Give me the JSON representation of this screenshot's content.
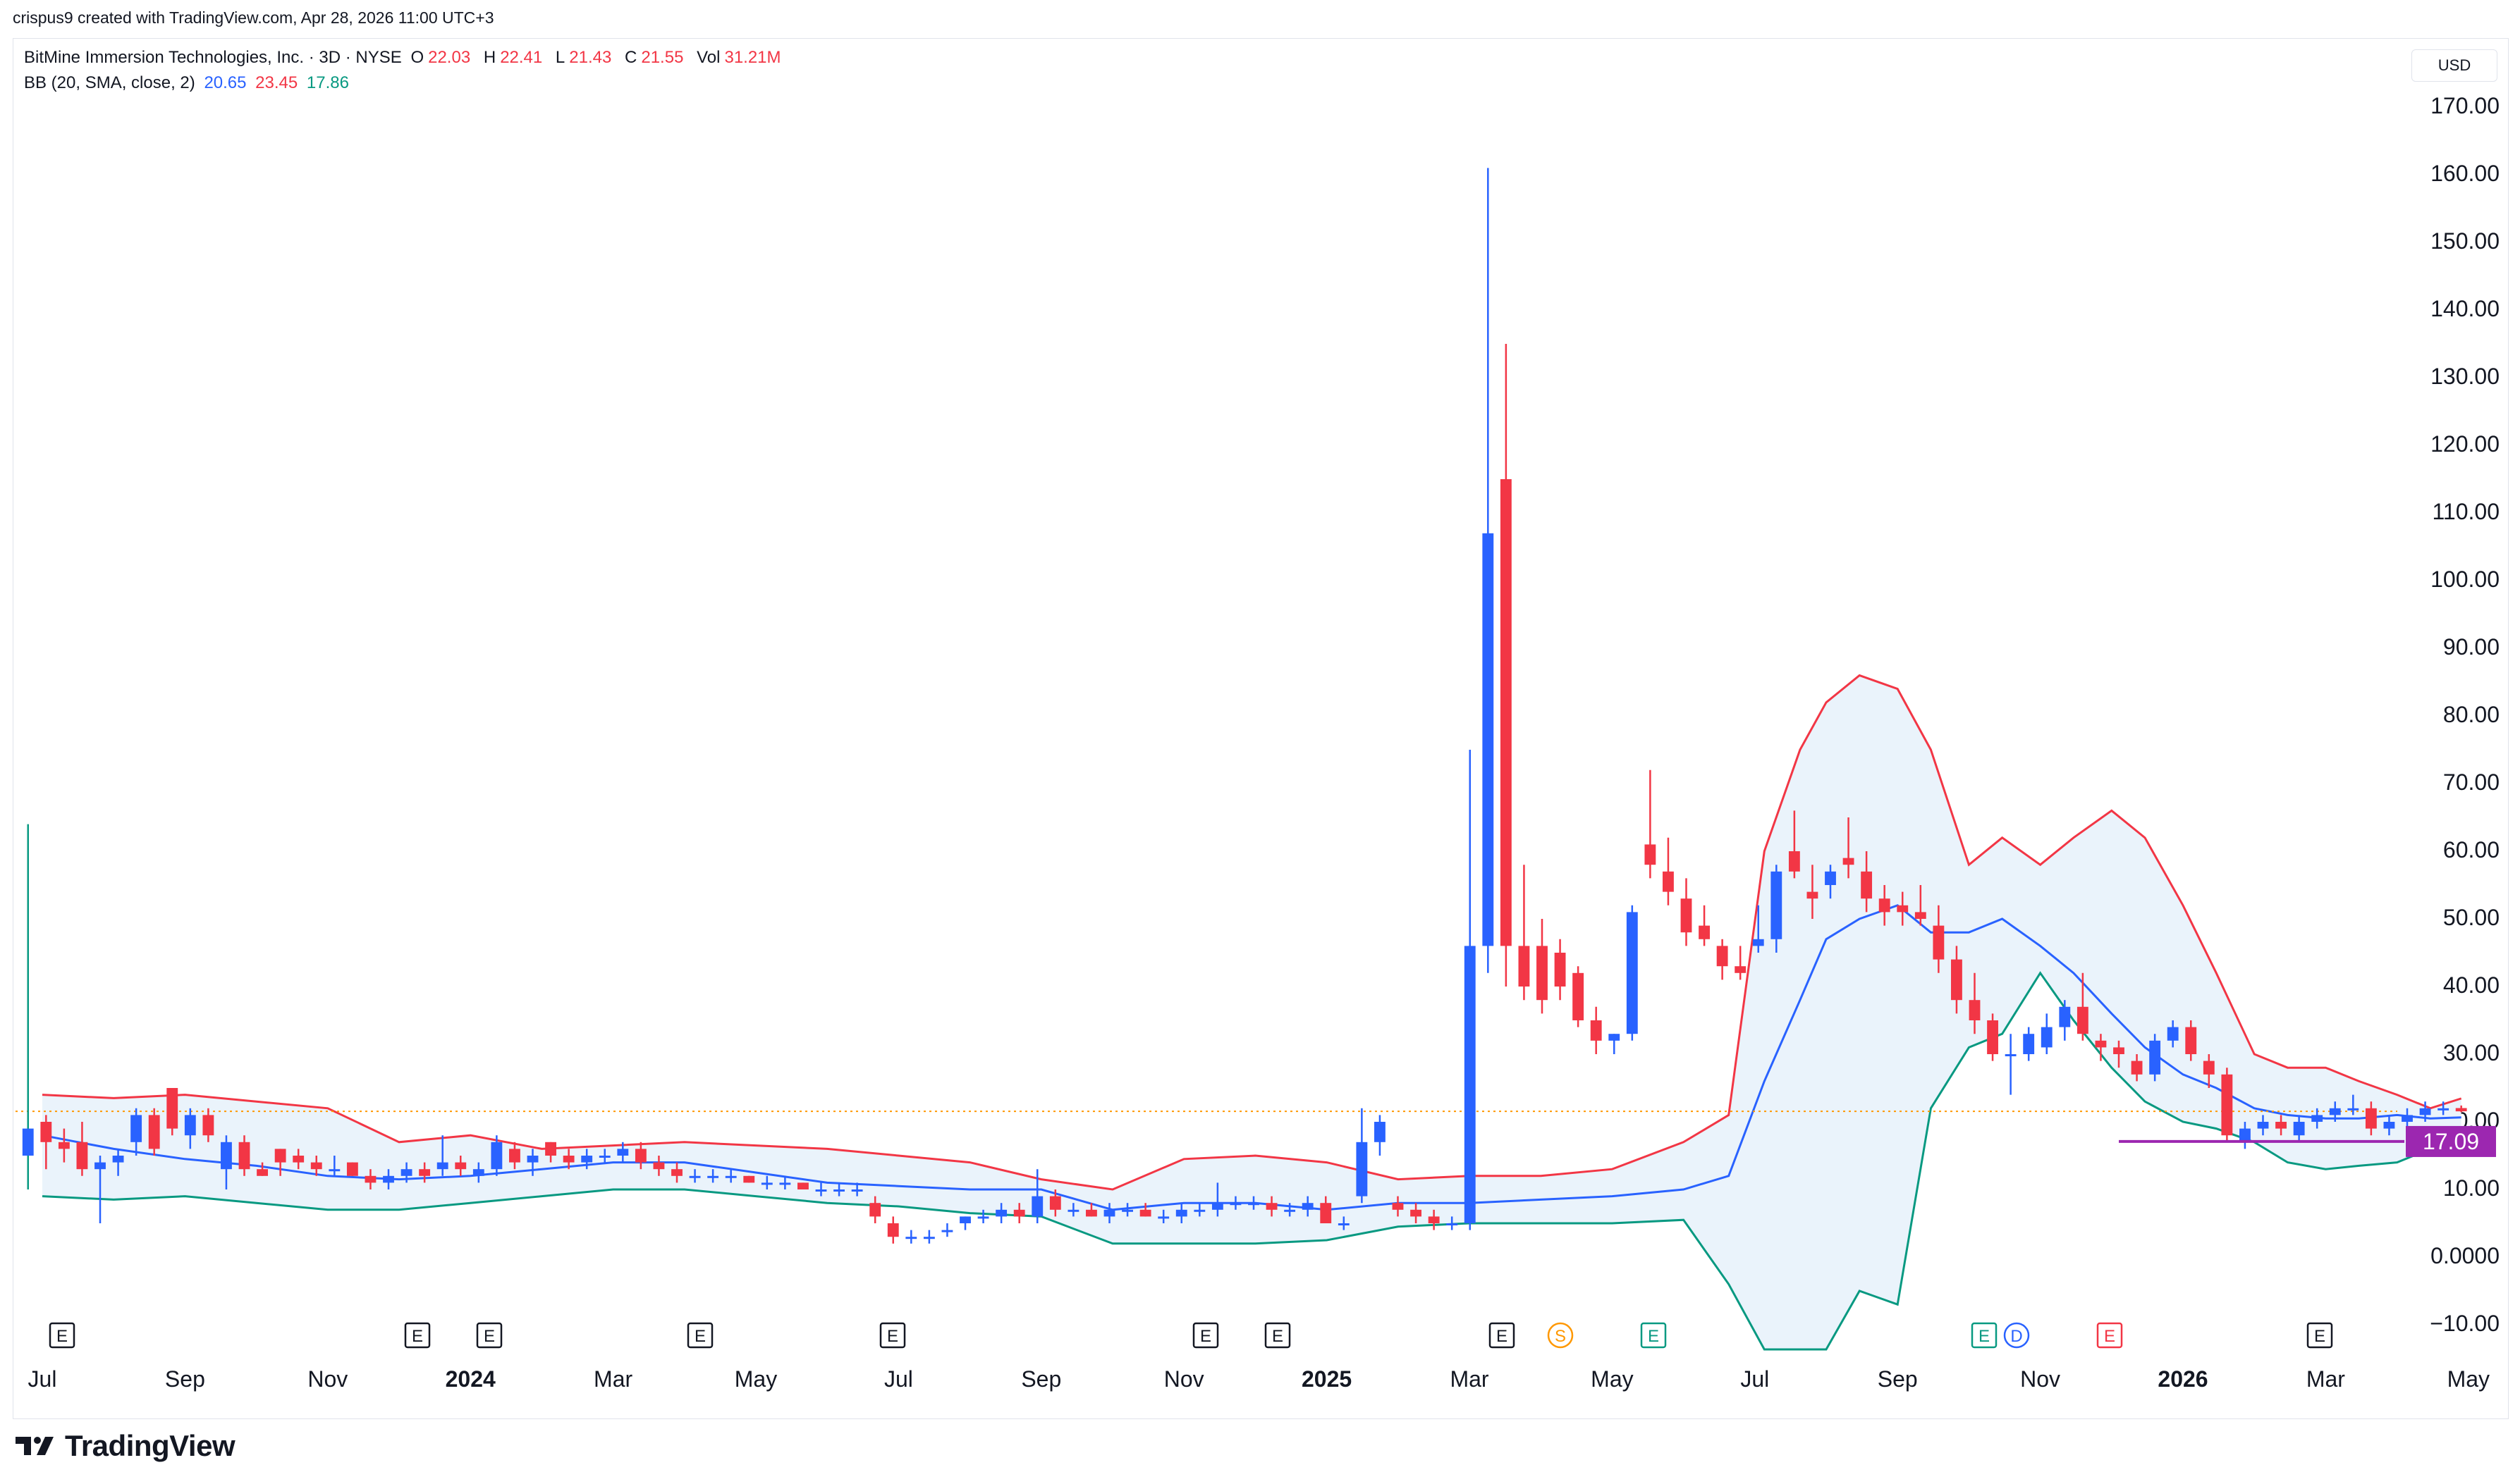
{
  "header": {
    "byline": "crispus9 created with TradingView.com, Apr 28, 2026 11:00 UTC+3"
  },
  "legend": {
    "symbol": "BitMine Immersion Technologies, Inc. · 3D · NYSE",
    "o_label": "O",
    "o": "22.03",
    "h_label": "H",
    "h": "22.41",
    "l_label": "L",
    "l": "21.43",
    "c_label": "C",
    "c": "21.55",
    "vol_label": "Vol",
    "vol": "31.21M",
    "bb_label": "BB (20, SMA, close, 2)",
    "bb_basis": "20.65",
    "bb_upper": "23.45",
    "bb_lower": "17.86"
  },
  "currency": "USD",
  "brand": {
    "name": "TradingView"
  },
  "colors": {
    "up": "#2962ff",
    "down": "#f23645",
    "upper_band": "#f23645",
    "lower_band": "#089981",
    "basis": "#2962ff",
    "band_fill": "#eaf3fb",
    "support": "#9c27b0",
    "last_price": "#ff9800"
  },
  "chart_data": {
    "type": "candlestick",
    "y_ticks": [
      "170.00",
      "160.00",
      "150.00",
      "140.00",
      "130.00",
      "120.00",
      "110.00",
      "100.00",
      "90.00",
      "80.00",
      "70.00",
      "60.00",
      "50.00",
      "40.00",
      "30.00",
      "20.00",
      "10.00",
      "0.0000",
      "−10.00"
    ],
    "ylim": [
      -10,
      170
    ],
    "x_ticks": [
      {
        "label": "Jul",
        "bold": false
      },
      {
        "label": "Sep",
        "bold": false
      },
      {
        "label": "Nov",
        "bold": false
      },
      {
        "label": "2024",
        "bold": true
      },
      {
        "label": "Mar",
        "bold": false
      },
      {
        "label": "May",
        "bold": false
      },
      {
        "label": "Jul",
        "bold": false
      },
      {
        "label": "Sep",
        "bold": false
      },
      {
        "label": "Nov",
        "bold": false
      },
      {
        "label": "2025",
        "bold": true
      },
      {
        "label": "Mar",
        "bold": false
      },
      {
        "label": "May",
        "bold": false
      },
      {
        "label": "Jul",
        "bold": false
      },
      {
        "label": "Sep",
        "bold": false
      },
      {
        "label": "Nov",
        "bold": false
      },
      {
        "label": "2026",
        "bold": true
      },
      {
        "label": "Mar",
        "bold": false
      },
      {
        "label": "May",
        "bold": false
      }
    ],
    "support_level": {
      "value": 17.09,
      "label": "17.09"
    },
    "last_price": 21.55,
    "events": [
      {
        "type": "E",
        "date": "2023-07"
      },
      {
        "type": "E",
        "date": "2023-12"
      },
      {
        "type": "E",
        "date": "2024-01"
      },
      {
        "type": "E",
        "date": "2024-04"
      },
      {
        "type": "E",
        "date": "2024-07"
      },
      {
        "type": "E",
        "date": "2024-11"
      },
      {
        "type": "E",
        "date": "2024-12"
      },
      {
        "type": "E",
        "date": "2025-04"
      },
      {
        "type": "S",
        "date": "2025-05"
      },
      {
        "type": "E",
        "date": "2025-07"
      },
      {
        "type": "E",
        "date": "2025-11"
      },
      {
        "type": "D",
        "date": "2025-11"
      },
      {
        "type": "E",
        "date": "2026-01"
      },
      {
        "type": "E",
        "date": "2026-04"
      }
    ],
    "bands": {
      "dates": [
        "2023-07",
        "2023-08",
        "2023-09",
        "2023-10",
        "2023-11",
        "2023-12",
        "2024-01",
        "2024-02",
        "2024-03",
        "2024-04",
        "2024-05",
        "2024-06",
        "2024-07",
        "2024-08",
        "2024-09",
        "2024-10",
        "2024-11",
        "2024-12",
        "2025-01",
        "2025-02",
        "2025-03",
        "2025-04",
        "2025-05",
        "2025-06",
        "2025-06-20",
        "2025-07-05",
        "2025-07-20",
        "2025-08",
        "2025-08-15",
        "2025-09",
        "2025-09-15",
        "2025-10",
        "2025-10-15",
        "2025-11",
        "2025-11-15",
        "2025-12",
        "2025-12-15",
        "2026-01",
        "2026-01-15",
        "2026-02",
        "2026-02-15",
        "2026-03",
        "2026-03-15",
        "2026-04",
        "2026-04-15",
        "2026-04-28"
      ],
      "upper": [
        24,
        23.5,
        24,
        23,
        22,
        17,
        18,
        16,
        16.5,
        17,
        16.5,
        16,
        15,
        14,
        11.5,
        10,
        14.5,
        15,
        14,
        11.5,
        12,
        12,
        13,
        17,
        21,
        60,
        75,
        82,
        86,
        84,
        75,
        58,
        62,
        58,
        62,
        66,
        62,
        52,
        42,
        30,
        28,
        28,
        26,
        24,
        22,
        23.45
      ],
      "basis": [
        18,
        16,
        14.5,
        13.5,
        12,
        11.5,
        12,
        13,
        14,
        14,
        12.5,
        11,
        10.5,
        10,
        10,
        7,
        8,
        8,
        7,
        8,
        8,
        8.5,
        9,
        10,
        12,
        26,
        38,
        47,
        50,
        52,
        48,
        48,
        50,
        46,
        42,
        36,
        31,
        27,
        25,
        22,
        21,
        20.5,
        20.5,
        21,
        20.5,
        20.65
      ],
      "lower": [
        9,
        8.5,
        9,
        8,
        7,
        7,
        8,
        9,
        10,
        10,
        9,
        8,
        7.5,
        6.5,
        6,
        2,
        2,
        2,
        2.5,
        4.5,
        5,
        5,
        5,
        5.5,
        -4,
        -30,
        -40,
        -20,
        -5,
        -7,
        22,
        31,
        33,
        42,
        35,
        28,
        23,
        20,
        19,
        17,
        14,
        13,
        13.5,
        14,
        16,
        17.86
      ]
    },
    "candles": [
      {
        "o": 15,
        "h": 64,
        "l": 10,
        "c": 19,
        "v": "spike"
      },
      {
        "o": 20,
        "h": 21,
        "l": 13,
        "c": 17
      },
      {
        "o": 17,
        "h": 19,
        "l": 14,
        "c": 16
      },
      {
        "o": 17,
        "h": 20,
        "l": 12,
        "c": 13
      },
      {
        "o": 13,
        "h": 15,
        "l": 5,
        "c": 14
      },
      {
        "o": 14,
        "h": 16,
        "l": 12,
        "c": 15
      },
      {
        "o": 17,
        "h": 22,
        "l": 15,
        "c": 21
      },
      {
        "o": 21,
        "h": 22,
        "l": 15,
        "c": 16
      },
      {
        "o": 25,
        "h": 25,
        "l": 18,
        "c": 19
      },
      {
        "o": 18,
        "h": 22,
        "l": 16,
        "c": 21
      },
      {
        "o": 21,
        "h": 22,
        "l": 17,
        "c": 18
      },
      {
        "o": 13,
        "h": 18,
        "l": 10,
        "c": 17
      },
      {
        "o": 17,
        "h": 18,
        "l": 12,
        "c": 13
      },
      {
        "o": 13,
        "h": 14,
        "l": 12,
        "c": 12
      },
      {
        "o": 16,
        "h": 16,
        "l": 12,
        "c": 14
      },
      {
        "o": 15,
        "h": 16,
        "l": 13,
        "c": 14
      },
      {
        "o": 14,
        "h": 15,
        "l": 12,
        "c": 13
      },
      {
        "o": 13,
        "h": 15,
        "l": 12,
        "c": 13
      },
      {
        "o": 14,
        "h": 14,
        "l": 12,
        "c": 12
      },
      {
        "o": 12,
        "h": 13,
        "l": 10,
        "c": 11
      },
      {
        "o": 11,
        "h": 13,
        "l": 10,
        "c": 12
      },
      {
        "o": 12,
        "h": 14,
        "l": 11,
        "c": 13
      },
      {
        "o": 13,
        "h": 14,
        "l": 11,
        "c": 12
      },
      {
        "o": 13,
        "h": 18,
        "l": 12,
        "c": 14
      },
      {
        "o": 14,
        "h": 15,
        "l": 12,
        "c": 13
      },
      {
        "o": 12,
        "h": 14,
        "l": 11,
        "c": 13
      },
      {
        "o": 13,
        "h": 18,
        "l": 12,
        "c": 17
      },
      {
        "o": 16,
        "h": 17,
        "l": 13,
        "c": 14
      },
      {
        "o": 14,
        "h": 16,
        "l": 12,
        "c": 15
      },
      {
        "o": 17,
        "h": 17,
        "l": 14,
        "c": 15
      },
      {
        "o": 15,
        "h": 16,
        "l": 13,
        "c": 14
      },
      {
        "o": 14,
        "h": 16,
        "l": 13,
        "c": 15
      },
      {
        "o": 15,
        "h": 16,
        "l": 14,
        "c": 15
      },
      {
        "o": 15,
        "h": 17,
        "l": 14,
        "c": 16
      },
      {
        "o": 16,
        "h": 17,
        "l": 13,
        "c": 14
      },
      {
        "o": 14,
        "h": 15,
        "l": 12,
        "c": 13
      },
      {
        "o": 13,
        "h": 14,
        "l": 11,
        "c": 12
      },
      {
        "o": 12,
        "h": 13,
        "l": 11,
        "c": 12
      },
      {
        "o": 12,
        "h": 13,
        "l": 11,
        "c": 12
      },
      {
        "o": 12,
        "h": 13,
        "l": 11,
        "c": 12
      },
      {
        "o": 12,
        "h": 12,
        "l": 11,
        "c": 11
      },
      {
        "o": 11,
        "h": 12,
        "l": 10,
        "c": 11
      },
      {
        "o": 11,
        "h": 12,
        "l": 10,
        "c": 11
      },
      {
        "o": 11,
        "h": 11,
        "l": 10,
        "c": 10
      },
      {
        "o": 10,
        "h": 11,
        "l": 9,
        "c": 10
      },
      {
        "o": 10,
        "h": 11,
        "l": 9,
        "c": 10
      },
      {
        "o": 10,
        "h": 11,
        "l": 9,
        "c": 10
      },
      {
        "o": 8,
        "h": 9,
        "l": 5,
        "c": 6
      },
      {
        "o": 5,
        "h": 6,
        "l": 2,
        "c": 3
      },
      {
        "o": 3,
        "h": 4,
        "l": 2,
        "c": 3
      },
      {
        "o": 3,
        "h": 4,
        "l": 2,
        "c": 3
      },
      {
        "o": 4,
        "h": 5,
        "l": 3,
        "c": 4
      },
      {
        "o": 5,
        "h": 6,
        "l": 4,
        "c": 6
      },
      {
        "o": 6,
        "h": 7,
        "l": 5,
        "c": 6
      },
      {
        "o": 6,
        "h": 8,
        "l": 5,
        "c": 7
      },
      {
        "o": 7,
        "h": 8,
        "l": 5,
        "c": 6
      },
      {
        "o": 6,
        "h": 13,
        "l": 5,
        "c": 9
      },
      {
        "o": 9,
        "h": 10,
        "l": 6,
        "c": 7
      },
      {
        "o": 7,
        "h": 8,
        "l": 6,
        "c": 7
      },
      {
        "o": 7,
        "h": 8,
        "l": 6,
        "c": 6
      },
      {
        "o": 6,
        "h": 8,
        "l": 5,
        "c": 7
      },
      {
        "o": 7,
        "h": 8,
        "l": 6,
        "c": 7
      },
      {
        "o": 7,
        "h": 8,
        "l": 6,
        "c": 6
      },
      {
        "o": 6,
        "h": 7,
        "l": 5,
        "c": 6
      },
      {
        "o": 6,
        "h": 8,
        "l": 5,
        "c": 7
      },
      {
        "o": 7,
        "h": 8,
        "l": 6,
        "c": 7
      },
      {
        "o": 7,
        "h": 11,
        "l": 6,
        "c": 8
      },
      {
        "o": 8,
        "h": 9,
        "l": 7,
        "c": 8
      },
      {
        "o": 8,
        "h": 9,
        "l": 7,
        "c": 8
      },
      {
        "o": 8,
        "h": 9,
        "l": 6,
        "c": 7
      },
      {
        "o": 7,
        "h": 8,
        "l": 6,
        "c": 7
      },
      {
        "o": 7,
        "h": 9,
        "l": 6,
        "c": 8
      },
      {
        "o": 8,
        "h": 9,
        "l": 5,
        "c": 5
      },
      {
        "o": 5,
        "h": 6,
        "l": 4,
        "c": 5
      },
      {
        "o": 9,
        "h": 22,
        "l": 8,
        "c": 17
      },
      {
        "o": 17,
        "h": 21,
        "l": 15,
        "c": 20
      },
      {
        "o": 8,
        "h": 9,
        "l": 6,
        "c": 7
      },
      {
        "o": 7,
        "h": 8,
        "l": 5,
        "c": 6
      },
      {
        "o": 6,
        "h": 7,
        "l": 4,
        "c": 5
      },
      {
        "o": 5,
        "h": 6,
        "l": 4,
        "c": 5
      },
      {
        "o": 5,
        "h": 75,
        "l": 4,
        "c": 46
      },
      {
        "o": 46,
        "h": 161,
        "l": 42,
        "c": 107
      },
      {
        "o": 115,
        "h": 135,
        "l": 40,
        "c": 46
      },
      {
        "o": 46,
        "h": 58,
        "l": 38,
        "c": 40
      },
      {
        "o": 46,
        "h": 50,
        "l": 36,
        "c": 38
      },
      {
        "o": 45,
        "h": 47,
        "l": 38,
        "c": 40
      },
      {
        "o": 42,
        "h": 43,
        "l": 34,
        "c": 35
      },
      {
        "o": 35,
        "h": 37,
        "l": 30,
        "c": 32
      },
      {
        "o": 32,
        "h": 33,
        "l": 30,
        "c": 33
      },
      {
        "o": 33,
        "h": 52,
        "l": 32,
        "c": 51
      },
      {
        "o": 61,
        "h": 72,
        "l": 56,
        "c": 58
      },
      {
        "o": 57,
        "h": 62,
        "l": 52,
        "c": 54
      },
      {
        "o": 53,
        "h": 56,
        "l": 46,
        "c": 48
      },
      {
        "o": 49,
        "h": 52,
        "l": 46,
        "c": 47
      },
      {
        "o": 46,
        "h": 47,
        "l": 41,
        "c": 43
      },
      {
        "o": 43,
        "h": 46,
        "l": 41,
        "c": 42
      },
      {
        "o": 46,
        "h": 52,
        "l": 45,
        "c": 47
      },
      {
        "o": 47,
        "h": 58,
        "l": 45,
        "c": 57
      },
      {
        "o": 60,
        "h": 66,
        "l": 56,
        "c": 57
      },
      {
        "o": 54,
        "h": 58,
        "l": 50,
        "c": 53
      },
      {
        "o": 55,
        "h": 58,
        "l": 53,
        "c": 57
      },
      {
        "o": 59,
        "h": 65,
        "l": 56,
        "c": 58
      },
      {
        "o": 57,
        "h": 60,
        "l": 51,
        "c": 53
      },
      {
        "o": 53,
        "h": 55,
        "l": 49,
        "c": 51
      },
      {
        "o": 52,
        "h": 54,
        "l": 49,
        "c": 51
      },
      {
        "o": 51,
        "h": 55,
        "l": 49,
        "c": 50
      },
      {
        "o": 49,
        "h": 52,
        "l": 42,
        "c": 44
      },
      {
        "o": 44,
        "h": 46,
        "l": 36,
        "c": 38
      },
      {
        "o": 38,
        "h": 42,
        "l": 33,
        "c": 35
      },
      {
        "o": 35,
        "h": 36,
        "l": 29,
        "c": 30
      },
      {
        "o": 30,
        "h": 33,
        "l": 24,
        "c": 30
      },
      {
        "o": 30,
        "h": 34,
        "l": 29,
        "c": 33
      },
      {
        "o": 31,
        "h": 36,
        "l": 30,
        "c": 34
      },
      {
        "o": 34,
        "h": 38,
        "l": 32,
        "c": 37
      },
      {
        "o": 37,
        "h": 42,
        "l": 32,
        "c": 33
      },
      {
        "o": 32,
        "h": 33,
        "l": 29,
        "c": 31
      },
      {
        "o": 31,
        "h": 32,
        "l": 28,
        "c": 30
      },
      {
        "o": 29,
        "h": 30,
        "l": 26,
        "c": 27
      },
      {
        "o": 27,
        "h": 33,
        "l": 26,
        "c": 32
      },
      {
        "o": 32,
        "h": 35,
        "l": 31,
        "c": 34
      },
      {
        "o": 34,
        "h": 35,
        "l": 29,
        "c": 30
      },
      {
        "o": 29,
        "h": 30,
        "l": 25,
        "c": 27
      },
      {
        "o": 27,
        "h": 28,
        "l": 17,
        "c": 18
      },
      {
        "o": 17,
        "h": 20,
        "l": 16,
        "c": 19
      },
      {
        "o": 19,
        "h": 21,
        "l": 18,
        "c": 20
      },
      {
        "o": 20,
        "h": 21,
        "l": 18,
        "c": 19
      },
      {
        "o": 18,
        "h": 21,
        "l": 17,
        "c": 20
      },
      {
        "o": 20,
        "h": 22,
        "l": 19,
        "c": 21
      },
      {
        "o": 21,
        "h": 23,
        "l": 20,
        "c": 22
      },
      {
        "o": 22,
        "h": 24,
        "l": 21,
        "c": 22
      },
      {
        "o": 22,
        "h": 23,
        "l": 18,
        "c": 19
      },
      {
        "o": 19,
        "h": 21,
        "l": 18,
        "c": 20
      },
      {
        "o": 20,
        "h": 22,
        "l": 19,
        "c": 21
      },
      {
        "o": 21,
        "h": 23,
        "l": 20,
        "c": 22
      },
      {
        "o": 22,
        "h": 23,
        "l": 21,
        "c": 22
      },
      {
        "o": 22.03,
        "h": 22.41,
        "l": 21.43,
        "c": 21.55
      }
    ]
  }
}
